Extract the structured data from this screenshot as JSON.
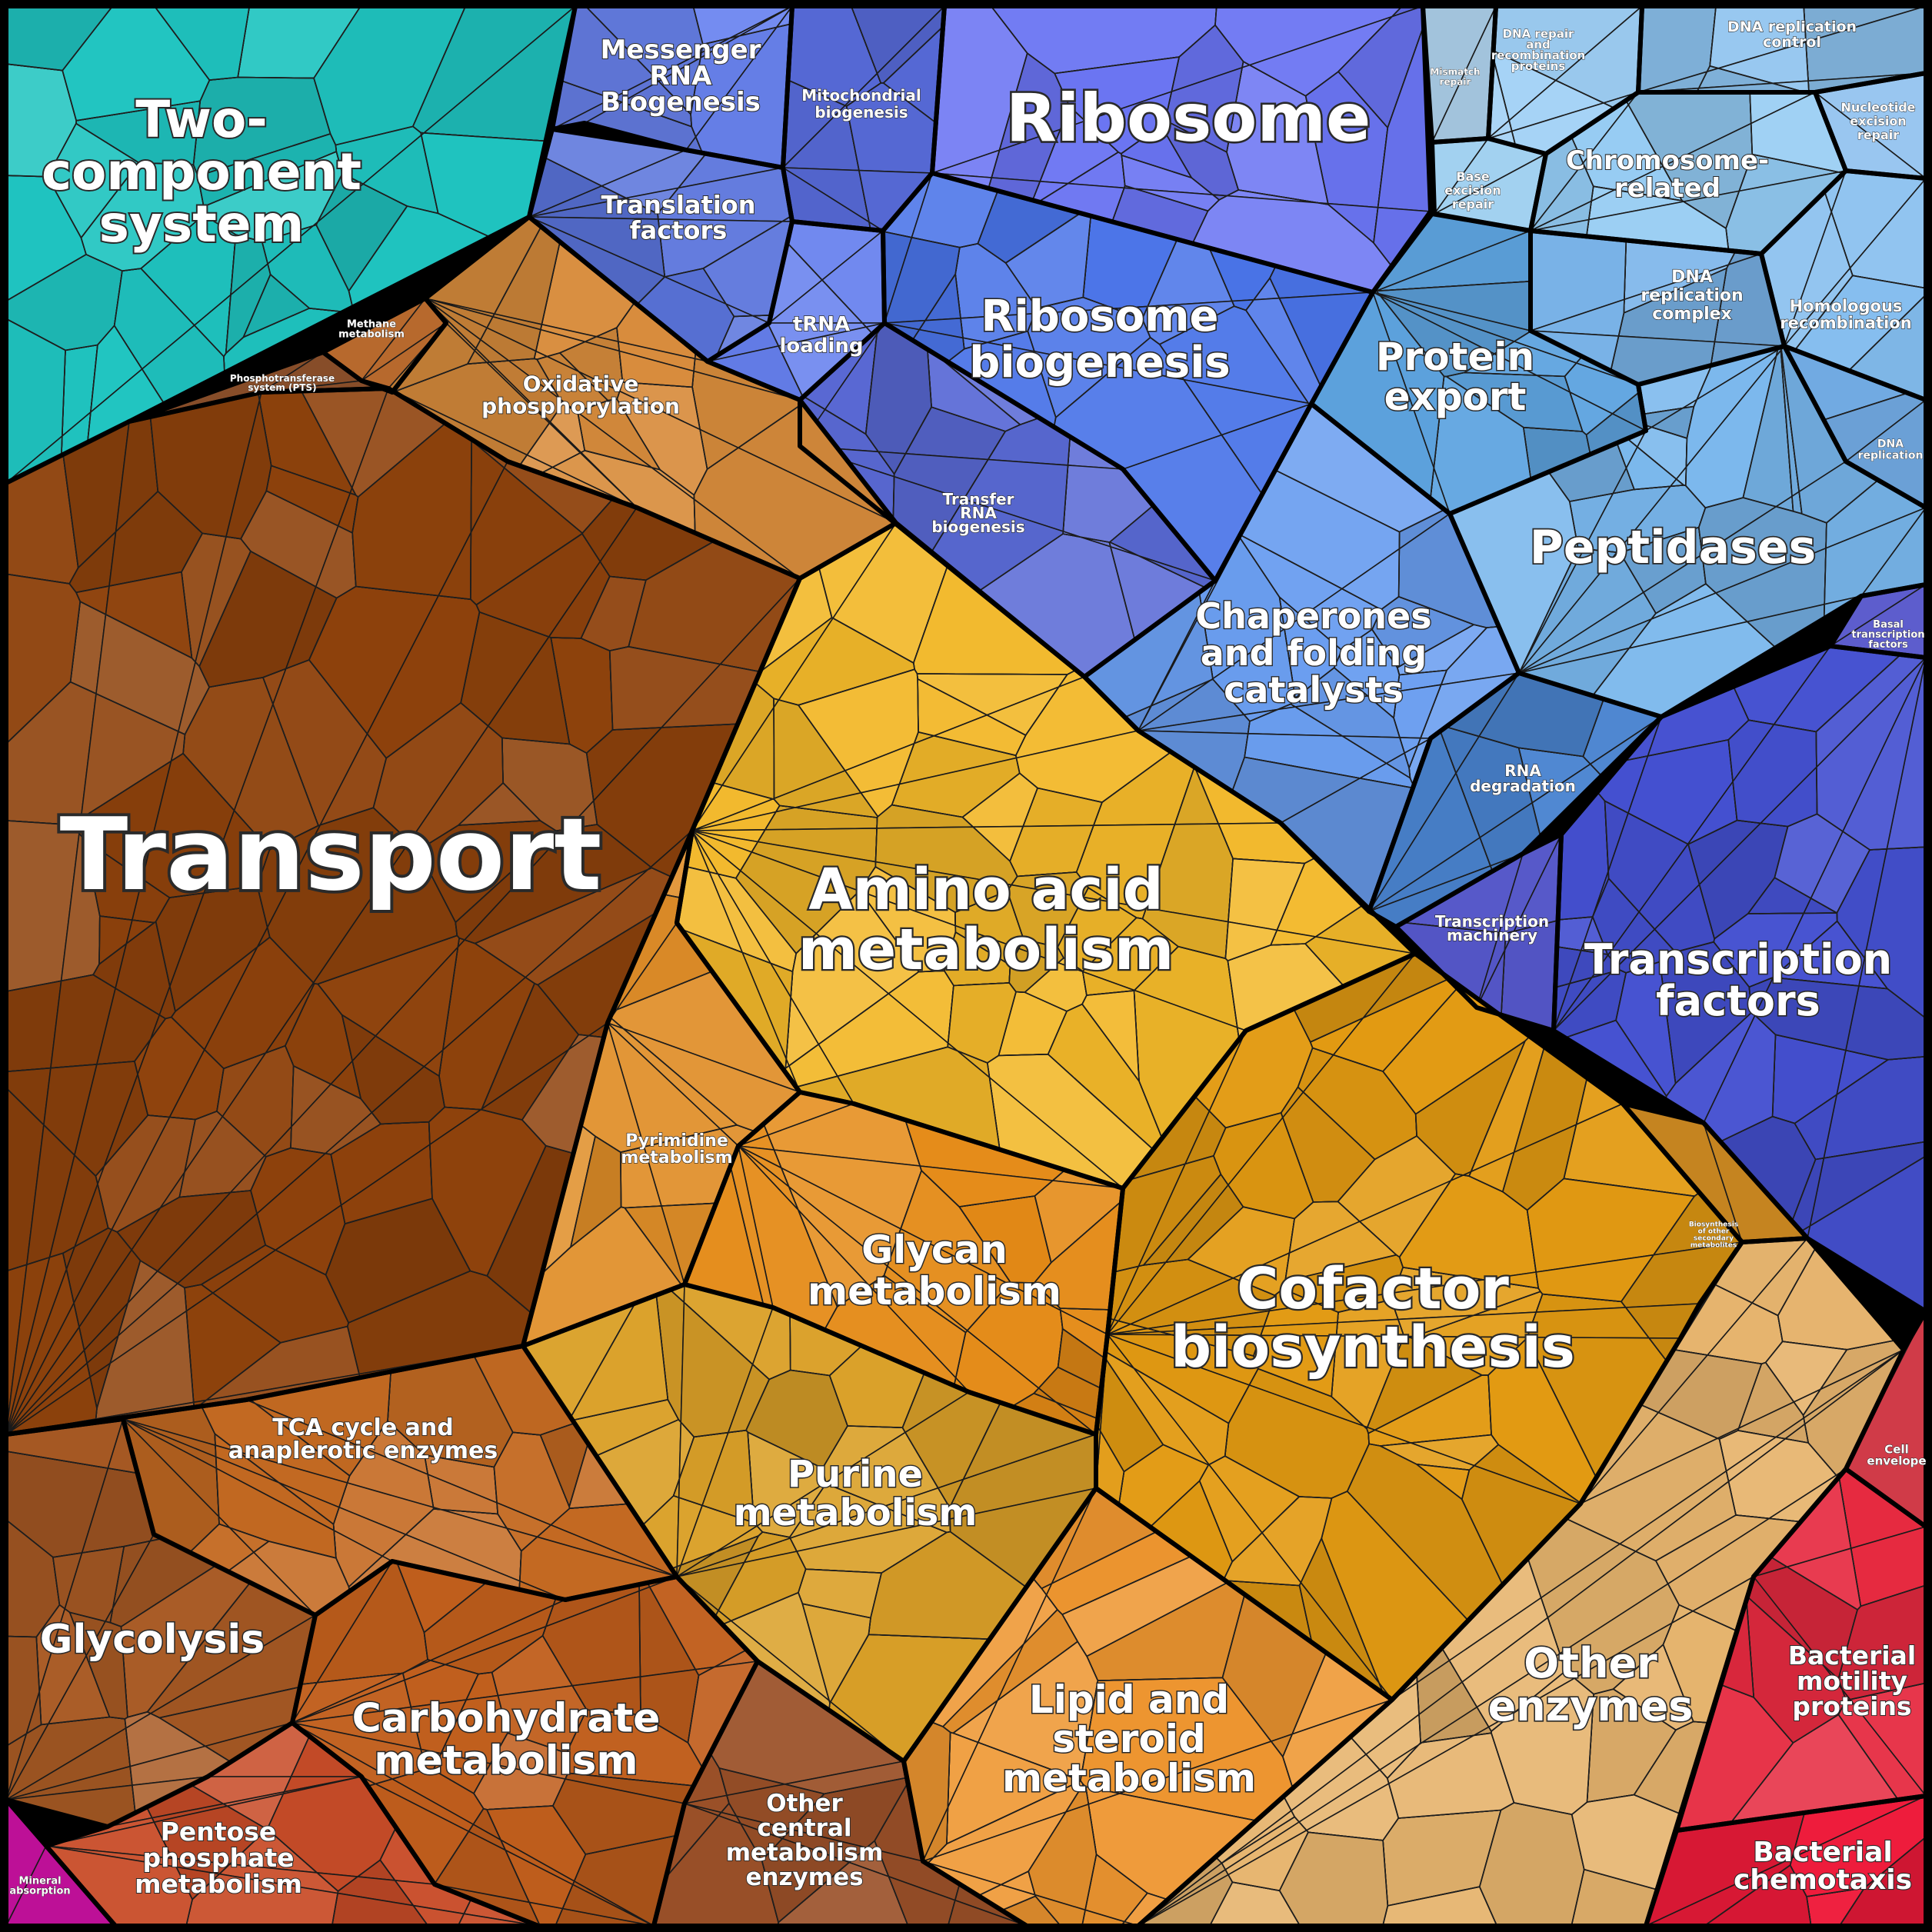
{
  "regions": [
    {
      "id": "two-component",
      "label": "Two-\ncomponent\nsystem",
      "color": "#1fc4c0"
    },
    {
      "id": "messenger-rna",
      "label": "Messenger\nRNA\nBiogenesis",
      "color": "#6a84f0"
    },
    {
      "id": "mitochondrial",
      "label": "Mitochondrial\nbiogenesis",
      "color": "#5a6ee0"
    },
    {
      "id": "ribosome",
      "label": "Ribosome",
      "color": "#6a74f2"
    },
    {
      "id": "translation-factors",
      "label": "Translation\nfactors",
      "color": "#5a74dc"
    },
    {
      "id": "trna-loading",
      "label": "tRNA\nloading",
      "color": "#6680ee"
    },
    {
      "id": "ribosome-biogenesis",
      "label": "Ribosome\nbiogenesis",
      "color": "#4a74e8"
    },
    {
      "id": "transfer-rna",
      "label": "Transfer\nRNA\nbiogenesis",
      "color": "#5a6ad6"
    },
    {
      "id": "mismatch-repair",
      "label": "Mismatch\nrepair",
      "color": "#b6dcf8"
    },
    {
      "id": "dna-repair-recomb",
      "label": "DNA repair\nand\nrecombination\nproteins",
      "color": "#9ecff5"
    },
    {
      "id": "dna-replication-control",
      "label": "DNA replication\ncontrol",
      "color": "#8cc2ee"
    },
    {
      "id": "nucleotide-excision",
      "label": "Nucleotide\nexcision\nrepair",
      "color": "#8ec0ee"
    },
    {
      "id": "base-excision",
      "label": "Base\nexcision\nrepair",
      "color": "#a8d8f8"
    },
    {
      "id": "chromosome-related",
      "label": "Chromosome-\nrelated",
      "color": "#92caf2"
    },
    {
      "id": "dna-replication-complex",
      "label": "DNA\nreplication\ncomplex",
      "color": "#7ab4ea"
    },
    {
      "id": "homologous-recombination",
      "label": "Homologous\nrecombination",
      "color": "#82bcee"
    },
    {
      "id": "dna-replication",
      "label": "DNA\nreplication",
      "color": "#74aee8"
    },
    {
      "id": "protein-export",
      "label": "Protein\nexport",
      "color": "#5ea4e0"
    },
    {
      "id": "peptidases",
      "label": "Peptidases",
      "color": "#78b6ec"
    },
    {
      "id": "chaperones",
      "label": "Chaperones\nand folding\ncatalysts",
      "color": "#6a9ef0"
    },
    {
      "id": "rna-degradation",
      "label": "RNA\ndegradation",
      "color": "#4a84d0"
    },
    {
      "id": "basal-transcription",
      "label": "Basal\ntranscription\nfactors",
      "color": "#4e4ec8"
    },
    {
      "id": "transcription-machinery",
      "label": "Transcription\nmachinery",
      "color": "#5456c8"
    },
    {
      "id": "transcription-factors",
      "label": "Transcription\nfactors",
      "color": "#4450d0"
    },
    {
      "id": "methane",
      "label": "Methane\nmetabolism",
      "color": "#c47030"
    },
    {
      "id": "pts",
      "label": "Phosphotransferase\nsystem (PTS)",
      "color": "#7a3a12"
    },
    {
      "id": "oxidative",
      "label": "Oxidative\nphosphorylation",
      "color": "#d88c3c"
    },
    {
      "id": "transport",
      "label": "Transport",
      "color": "#8e420c"
    },
    {
      "id": "amino-acid",
      "label": "Amino acid\nmetabolism",
      "color": "#f2b82a"
    },
    {
      "id": "pyrimidine",
      "label": "Pyrimidine\nmetabolism",
      "color": "#e08e28"
    },
    {
      "id": "glycan",
      "label": "Glycan\nmetabolism",
      "color": "#e48a16"
    },
    {
      "id": "cofactor",
      "label": "Cofactor\nbiosynthesis",
      "color": "#e29a12"
    },
    {
      "id": "biosynthesis-secondary",
      "label": "Biosynthesis\nof other\nsecondary\nmetabolites",
      "color": "#c07a0e"
    },
    {
      "id": "purine",
      "label": "Purine\nmetabolism",
      "color": "#daa028"
    },
    {
      "id": "lipid",
      "label": "Lipid and\nsteroid\nmetabolism",
      "color": "#ee9630"
    },
    {
      "id": "other-enzymes",
      "label": "Other\nenzymes",
      "color": "#e6b46e"
    },
    {
      "id": "cell-envelope",
      "label": "Cell\nenvelope",
      "color": "#cc2a38"
    },
    {
      "id": "bacterial-motility",
      "label": "Bacterial\nmotility\nproteins",
      "color": "#e62a40"
    },
    {
      "id": "bacterial-chemotaxis",
      "label": "Bacterial\nchemotaxis",
      "color": "#ee1a3a"
    },
    {
      "id": "tca",
      "label": "TCA cycle and\nanaplerotic enzymes",
      "color": "#c46a22"
    },
    {
      "id": "glycolysis",
      "label": "Glycolysis",
      "color": "#a85a24"
    },
    {
      "id": "carbohydrate",
      "label": "Carbohydrate\nmetabolism",
      "color": "#c05e1c"
    },
    {
      "id": "other-central",
      "label": "Other\ncentral\nmetabolism\nenzymes",
      "color": "#9a5028"
    },
    {
      "id": "pentose",
      "label": "Pentose\nphosphate\nmetabolism",
      "color": "#c84c28"
    },
    {
      "id": "mineral",
      "label": "Mineral\nabsorption",
      "color": "#c0109a"
    }
  ]
}
